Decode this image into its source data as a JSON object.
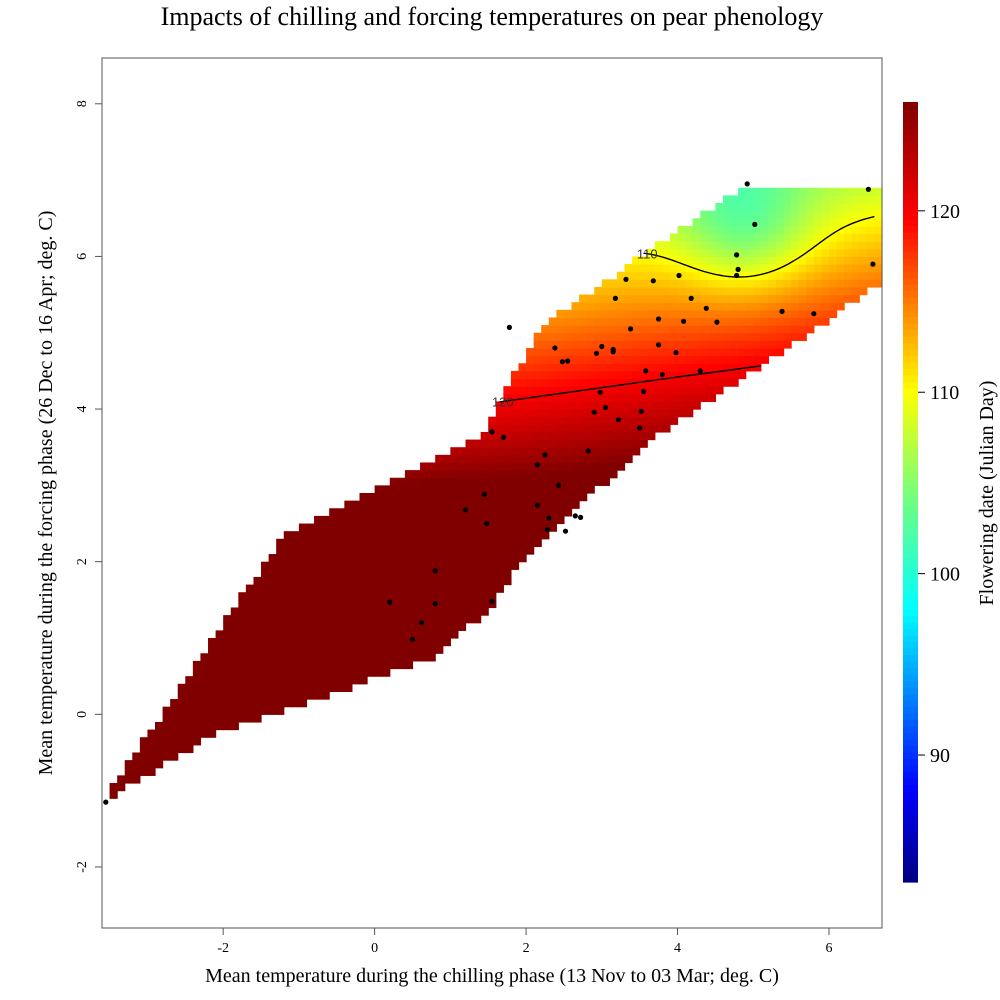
{
  "chart_data": {
    "type": "heatmap",
    "title": "Impacts of chilling and forcing temperatures on pear phenology",
    "xlabel": "Mean temperature during the chilling phase (13 Nov to 03 Mar; deg. C)",
    "ylabel": "Mean temperature during the forcing phase (26 Dec to 16 Apr; deg. C)",
    "colorbar_label": "Flowering date (Julian Day)",
    "xlim": [
      -3.6,
      6.7
    ],
    "ylim": [
      -2.8,
      8.6
    ],
    "x_ticks": [
      -2,
      0,
      2,
      4,
      6
    ],
    "y_ticks": [
      -2,
      0,
      2,
      4,
      6,
      8
    ],
    "color_range": [
      83,
      126
    ],
    "color_ticks": [
      90,
      100,
      110,
      120
    ],
    "contour_levels": [
      90,
      100,
      110,
      120
    ],
    "grid": false,
    "points": [
      [
        -3.55,
        -1.15
      ],
      [
        0.2,
        1.47
      ],
      [
        0.5,
        0.98
      ],
      [
        0.62,
        1.2
      ],
      [
        0.8,
        1.45
      ],
      [
        0.8,
        1.88
      ],
      [
        1.2,
        2.68
      ],
      [
        1.45,
        2.88
      ],
      [
        1.48,
        2.5
      ],
      [
        1.55,
        1.48
      ],
      [
        1.55,
        3.7
      ],
      [
        1.7,
        3.63
      ],
      [
        1.78,
        5.07
      ],
      [
        2.15,
        3.27
      ],
      [
        2.15,
        2.74
      ],
      [
        2.25,
        3.4
      ],
      [
        2.28,
        2.42
      ],
      [
        2.3,
        2.57
      ],
      [
        2.38,
        4.8
      ],
      [
        2.43,
        3.0
      ],
      [
        2.48,
        4.62
      ],
      [
        2.52,
        2.4
      ],
      [
        2.55,
        4.63
      ],
      [
        2.65,
        2.6
      ],
      [
        2.72,
        2.58
      ],
      [
        2.82,
        3.45
      ],
      [
        2.9,
        3.96
      ],
      [
        2.93,
        4.73
      ],
      [
        2.98,
        4.22
      ],
      [
        3.0,
        4.82
      ],
      [
        3.05,
        4.02
      ],
      [
        3.15,
        4.78
      ],
      [
        3.15,
        4.75
      ],
      [
        3.18,
        5.45
      ],
      [
        3.22,
        3.86
      ],
      [
        3.32,
        5.7
      ],
      [
        3.38,
        5.05
      ],
      [
        3.5,
        3.75
      ],
      [
        3.52,
        3.97
      ],
      [
        3.55,
        4.23
      ],
      [
        3.58,
        4.5
      ],
      [
        3.68,
        5.68
      ],
      [
        3.75,
        4.84
      ],
      [
        3.75,
        5.18
      ],
      [
        3.8,
        4.45
      ],
      [
        3.98,
        4.74
      ],
      [
        4.02,
        5.75
      ],
      [
        4.08,
        5.15
      ],
      [
        4.18,
        5.45
      ],
      [
        4.3,
        4.5
      ],
      [
        4.38,
        5.32
      ],
      [
        4.52,
        5.14
      ],
      [
        4.78,
        6.02
      ],
      [
        4.78,
        5.75
      ],
      [
        4.8,
        5.83
      ],
      [
        4.92,
        6.95
      ],
      [
        5.02,
        6.42
      ],
      [
        5.38,
        5.28
      ],
      [
        5.8,
        5.25
      ],
      [
        6.52,
        6.88
      ],
      [
        6.58,
        5.9
      ]
    ]
  }
}
